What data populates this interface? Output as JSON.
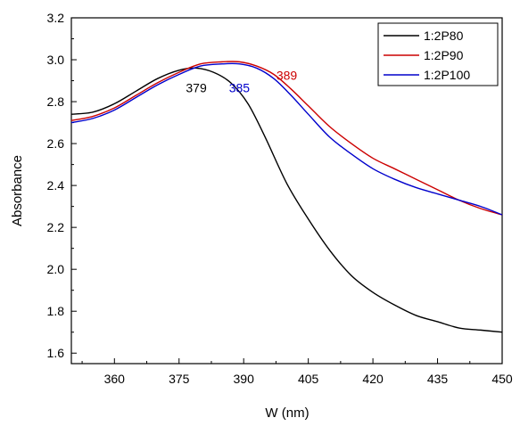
{
  "chart_data": {
    "type": "line",
    "title": "",
    "xlabel": "W (nm)",
    "ylabel": "Absorbance",
    "xlim": [
      350,
      450
    ],
    "ylim": [
      1.55,
      3.2
    ],
    "x_ticks": [
      360,
      375,
      390,
      405,
      420,
      435,
      450
    ],
    "y_ticks": [
      1.6,
      1.8,
      2.0,
      2.2,
      2.4,
      2.6,
      2.8,
      3.0,
      3.2
    ],
    "x_tick_labels": [
      "360",
      "375",
      "390",
      "405",
      "420",
      "435",
      "450"
    ],
    "y_tick_labels": [
      "1.6",
      "1.8",
      "2.0",
      "2.2",
      "2.4",
      "2.6",
      "2.8",
      "3.0",
      "3.2"
    ],
    "grid": false,
    "legend_position": "top-right",
    "series": [
      {
        "name": "1:2P80",
        "color": "#000000",
        "x": [
          350,
          355,
          360,
          365,
          370,
          375,
          379,
          383,
          387,
          391,
          395,
          400,
          405,
          410,
          415,
          420,
          425,
          430,
          435,
          440,
          445,
          450
        ],
        "y": [
          2.74,
          2.75,
          2.79,
          2.85,
          2.91,
          2.95,
          2.96,
          2.94,
          2.89,
          2.79,
          2.63,
          2.41,
          2.24,
          2.09,
          1.97,
          1.89,
          1.83,
          1.78,
          1.75,
          1.72,
          1.71,
          1.7
        ]
      },
      {
        "name": "1:2P90",
        "color": "#cc0000",
        "x": [
          350,
          355,
          360,
          365,
          370,
          375,
          380,
          385,
          389,
          393,
          397,
          401,
          405,
          410,
          415,
          420,
          425,
          430,
          435,
          440,
          445,
          450
        ],
        "y": [
          2.71,
          2.73,
          2.77,
          2.83,
          2.89,
          2.94,
          2.98,
          2.99,
          2.99,
          2.97,
          2.93,
          2.86,
          2.78,
          2.68,
          2.6,
          2.53,
          2.48,
          2.43,
          2.38,
          2.33,
          2.29,
          2.26
        ]
      },
      {
        "name": "1:2P100",
        "color": "#0000cc",
        "x": [
          350,
          355,
          360,
          365,
          370,
          375,
          380,
          385,
          389,
          393,
          397,
          401,
          405,
          410,
          415,
          420,
          425,
          430,
          435,
          440,
          445,
          450
        ],
        "y": [
          2.7,
          2.72,
          2.76,
          2.82,
          2.88,
          2.93,
          2.97,
          2.98,
          2.98,
          2.96,
          2.91,
          2.83,
          2.74,
          2.63,
          2.55,
          2.48,
          2.43,
          2.39,
          2.36,
          2.33,
          2.3,
          2.26
        ]
      }
    ],
    "annotations": [
      {
        "text": "379",
        "x": 379,
        "y": 2.93,
        "color": "#000000"
      },
      {
        "text": "385",
        "x": 389,
        "y": 2.93,
        "color": "#0000cc"
      },
      {
        "text": "389",
        "x": 400,
        "y": 2.99,
        "color": "#cc0000"
      }
    ]
  }
}
